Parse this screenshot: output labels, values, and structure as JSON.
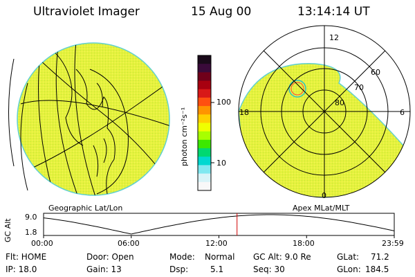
{
  "header": {
    "title": "Ultraviolet Imager",
    "date": "15 Aug 00",
    "time": "13:14:14 UT"
  },
  "colorbar": {
    "unit_label": "photon cm⁻²s⁻¹",
    "ticks": [
      "100",
      "10"
    ],
    "colors": [
      "#1a0a1a",
      "#3a0a3a",
      "#70001a",
      "#a80010",
      "#d81818",
      "#ff5010",
      "#ff9400",
      "#ffd000",
      "#f0ff00",
      "#a8ff00",
      "#3ce800",
      "#00d870",
      "#00d8d0",
      "#80e8f0",
      "#d8f4f8",
      "#f8f8f8"
    ]
  },
  "left_map": {
    "caption": "Geographic Lat/Lon",
    "fill_color": "#e6f23c"
  },
  "right_map": {
    "caption": "Apex MLat/MLT",
    "mlt_labels": {
      "top": "12",
      "left": "18",
      "right": "6",
      "bottom": "0"
    },
    "lat_labels": [
      "60",
      "70",
      "80"
    ],
    "fill_color": "#e6f23c"
  },
  "gc_alt_plot": {
    "ylabel": "GC Alt",
    "yticks": [
      "9.0",
      "1.8"
    ],
    "xticks": [
      "00:00",
      "06:00",
      "12:00",
      "18:00",
      "23:59"
    ],
    "current_hour": 13.24,
    "marker_color": "#d00000"
  },
  "status": {
    "flt": "Flt: HOME",
    "ip": "IP: 18.0",
    "door": "Door: Open",
    "gain": "Gain: 13",
    "mode_label": "Mode:",
    "mode_value": "Normal",
    "dsp_label": "Dsp:",
    "dsp_value": "5.1",
    "gcalt": "GC Alt: 9.0 Re",
    "seq": "Seq: 30",
    "glat_label": "GLat:",
    "glat_value": "71.2",
    "glon_label": "GLon:",
    "glon_value": "184.5"
  }
}
